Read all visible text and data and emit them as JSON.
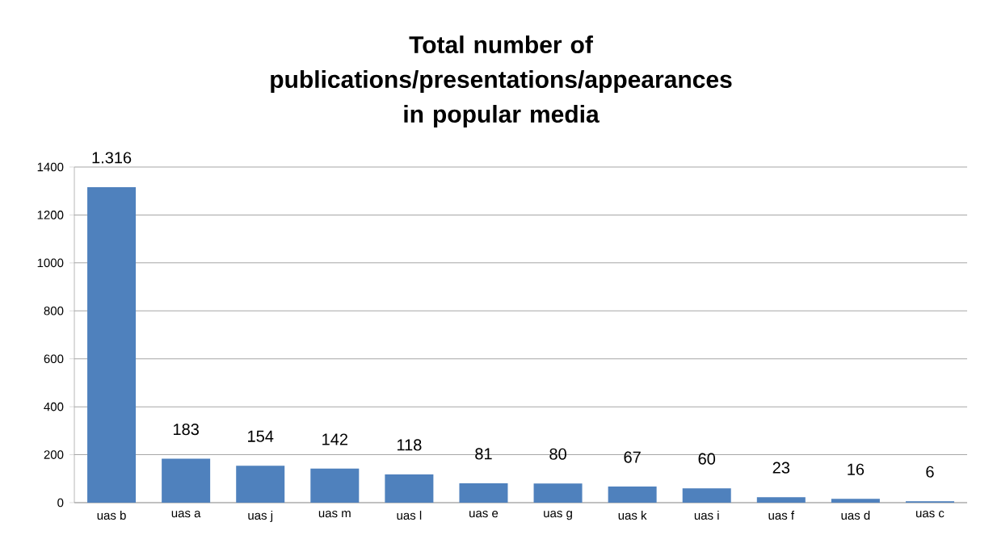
{
  "chart_data": {
    "type": "bar",
    "title": "Total number of publications/presentations/appearances in popular media",
    "categories": [
      "uas b",
      "uas a",
      "uas j",
      "uas m",
      "uas l",
      "uas e",
      "uas g",
      "uas k",
      "uas i",
      "uas f",
      "uas d",
      "uas c"
    ],
    "values": [
      1316,
      183,
      154,
      142,
      118,
      81,
      80,
      67,
      60,
      23,
      16,
      6
    ],
    "value_labels": [
      "1.316",
      "183",
      "154",
      "142",
      "118",
      "81",
      "80",
      "67",
      "60",
      "23",
      "16",
      "6"
    ],
    "color": "#4f81bd",
    "ylim": [
      0,
      1400
    ],
    "yticks": [
      0,
      200,
      400,
      600,
      800,
      1000,
      1200,
      1400
    ],
    "grid": "y"
  }
}
